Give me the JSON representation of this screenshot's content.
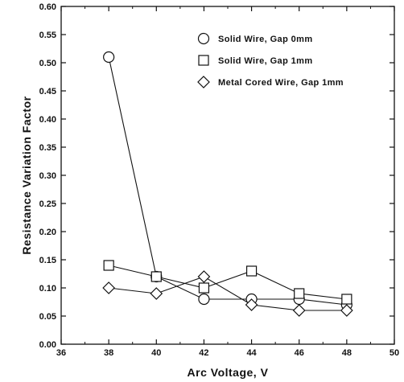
{
  "chart_data": {
    "type": "line",
    "title": "",
    "xlabel": "Arc Voltage, V",
    "ylabel": "Resistance Variation Factor",
    "xlim": [
      36,
      50
    ],
    "ylim": [
      0.0,
      0.6
    ],
    "x_ticks": [
      "36",
      "38",
      "40",
      "42",
      "44",
      "46",
      "48",
      "50"
    ],
    "y_ticks": [
      "0.00",
      "0.05",
      "0.10",
      "0.15",
      "0.20",
      "0.25",
      "0.30",
      "0.35",
      "0.40",
      "0.45",
      "0.50",
      "0.55",
      "0.60"
    ],
    "grid": false,
    "legend_position": "top-right",
    "series": [
      {
        "name": "Solid Wire, Gap 0mm",
        "marker": "circle",
        "x": [
          38,
          40,
          42,
          44,
          46,
          48
        ],
        "y": [
          0.51,
          0.12,
          0.08,
          0.08,
          0.08,
          0.07
        ]
      },
      {
        "name": "Solid Wire, Gap 1mm",
        "marker": "square",
        "x": [
          38,
          40,
          42,
          44,
          46,
          48
        ],
        "y": [
          0.14,
          0.12,
          0.1,
          0.13,
          0.09,
          0.08
        ]
      },
      {
        "name": "Metal Cored Wire, Gap 1mm",
        "marker": "diamond",
        "x": [
          38,
          40,
          42,
          44,
          46,
          48
        ],
        "y": [
          0.1,
          0.09,
          0.12,
          0.07,
          0.06,
          0.06
        ]
      }
    ]
  }
}
